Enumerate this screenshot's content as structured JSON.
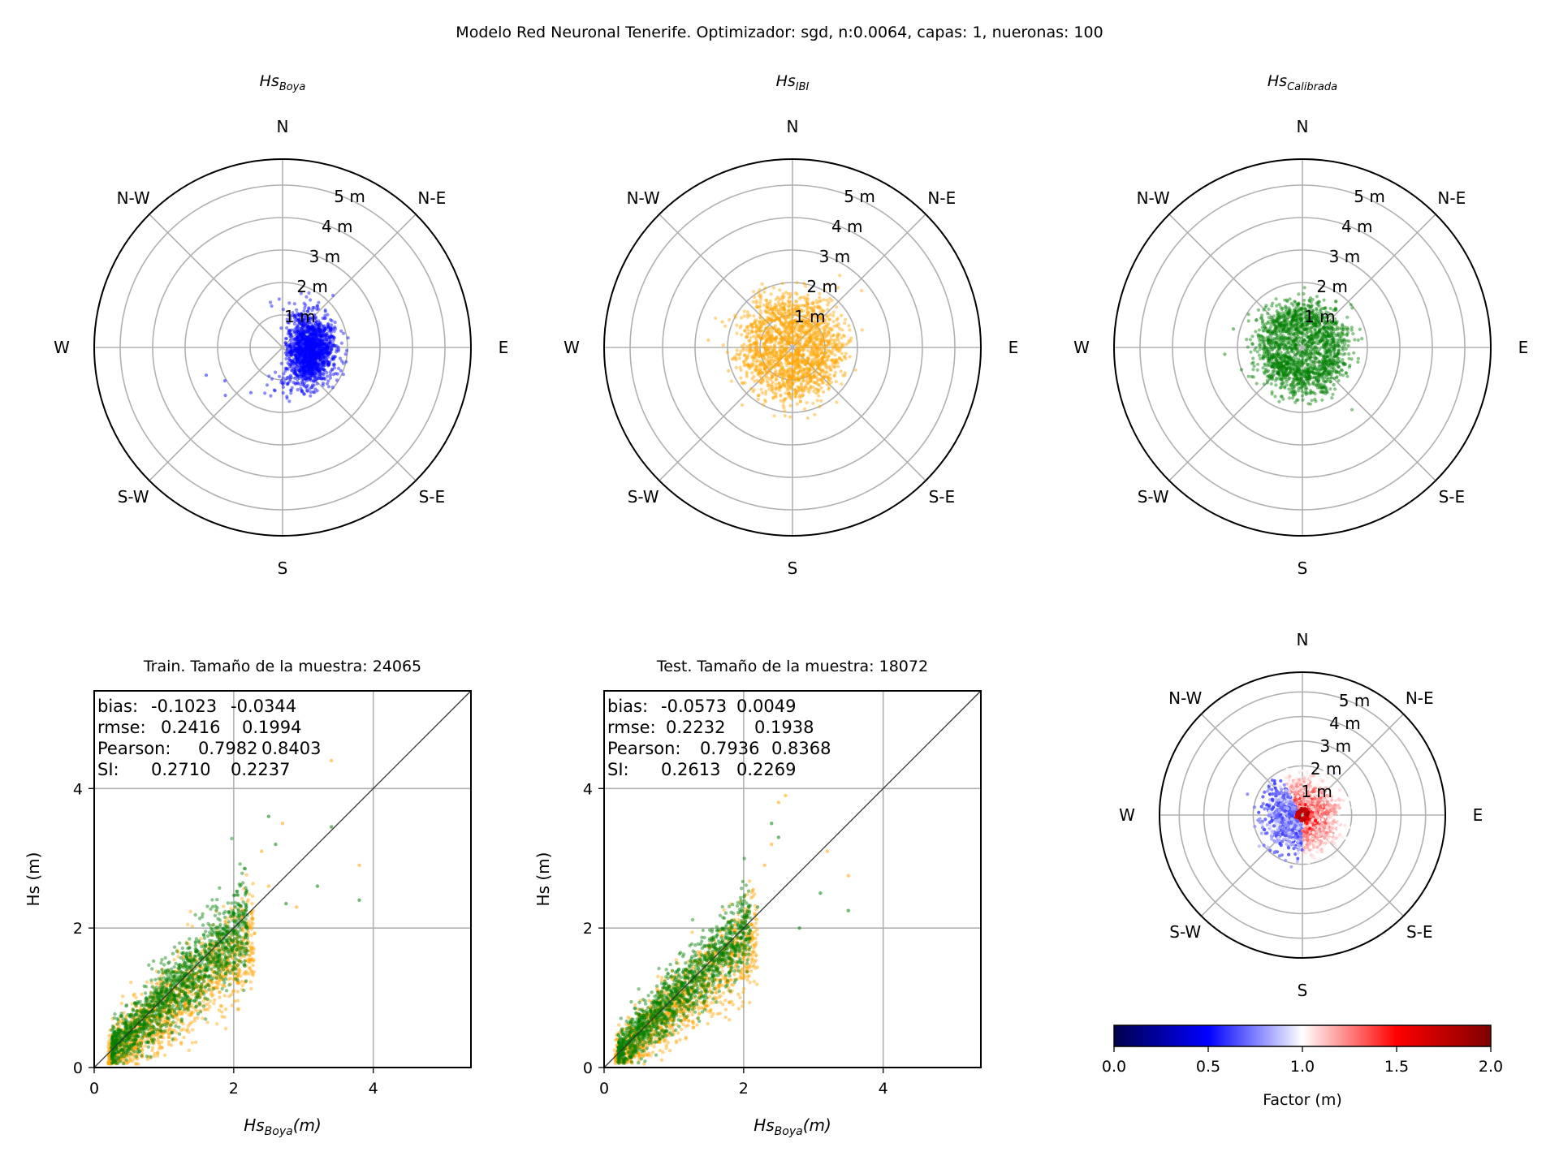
{
  "figure": {
    "suptitle": "Modelo Red Neuronal Tenerife. Optimizador: sgd, n:0.0064, capas: 1, nueronas: 100"
  },
  "colors": {
    "boya": "#0000ff",
    "ibi": "#ffa500",
    "calibrada": "#008000",
    "grid": "#b0b0b0",
    "identity_line": "#333333",
    "colormap": [
      "#00004c",
      "#0000ff",
      "#ffffff",
      "#ff0000",
      "#800000"
    ]
  },
  "chart_data": [
    {
      "type": "scatter",
      "projection": "polar",
      "title": "Hs_Boya",
      "title_base": "Hs",
      "title_sub": "Boya",
      "direction_labels": [
        "N",
        "N-E",
        "E",
        "S-E",
        "S",
        "S-W",
        "W",
        "N-W"
      ],
      "radial_ticks": [
        "1 m",
        "2 m",
        "3 m",
        "4 m",
        "5 m"
      ],
      "rlim": [
        0,
        5.8
      ],
      "grid": true,
      "color": "#0000ff",
      "cluster": {
        "center_dir_deg": 95,
        "center_r": 1.0,
        "spread_dir_deg": 55,
        "spread_r": 0.35,
        "n": 1600
      },
      "outliers": [
        [
          230,
          2.3
        ],
        [
          240,
          2.05
        ],
        [
          215,
          1.7
        ],
        [
          190,
          1.35
        ],
        [
          250,
          2.5
        ],
        [
          120,
          1.7
        ]
      ]
    },
    {
      "type": "scatter",
      "projection": "polar",
      "title": "Hs_IBI",
      "title_base": "Hs",
      "title_sub": "IBI",
      "direction_labels": [
        "N",
        "N-E",
        "E",
        "S-E",
        "S",
        "S-W",
        "W",
        "N-W"
      ],
      "radial_ticks": [
        "1 m",
        "2 m",
        "3 m",
        "4 m",
        "5 m"
      ],
      "rlim": [
        0,
        5.8
      ],
      "grid": true,
      "color": "#ffa500",
      "cluster": {
        "center_dir_deg": 0,
        "center_r": 1.05,
        "spread_dir_deg": 180,
        "spread_r": 0.45,
        "n": 1700
      },
      "outliers": [
        [
          275,
          2.6
        ],
        [
          250,
          2.1
        ],
        [
          235,
          1.9
        ],
        [
          290,
          2.3
        ],
        [
          135,
          1.6
        ],
        [
          215,
          1.8
        ]
      ]
    },
    {
      "type": "scatter",
      "projection": "polar",
      "title": "Hs_Calibrada",
      "title_base": "Hs",
      "title_sub": "Calibrada",
      "direction_labels": [
        "N",
        "N-E",
        "E",
        "S-E",
        "S",
        "S-W",
        "W",
        "N-W"
      ],
      "radial_ticks": [
        "1 m",
        "2 m",
        "3 m",
        "4 m",
        "5 m"
      ],
      "rlim": [
        0,
        5.8
      ],
      "grid": true,
      "color": "#008000",
      "cluster": {
        "center_dir_deg": 0,
        "center_r": 0.95,
        "spread_dir_deg": 180,
        "spread_r": 0.35,
        "n": 1700
      },
      "outliers": [
        [
          265,
          2.4
        ],
        [
          250,
          2.0
        ],
        [
          240,
          1.8
        ],
        [
          285,
          2.2
        ],
        [
          140,
          1.5
        ]
      ]
    },
    {
      "type": "scatter",
      "title": "Train. Tamaño de la muestra: 24065",
      "xlabel_base": "Hs",
      "xlabel_sub": "Boya",
      "xlabel_unit": "(m)",
      "ylabel": "Hs (m)",
      "xlim": [
        0,
        5.4
      ],
      "ylim": [
        0,
        5.4
      ],
      "xticks": [
        0,
        2,
        4
      ],
      "yticks": [
        0,
        2,
        4
      ],
      "grid": true,
      "identity_line": true,
      "stats": [
        {
          "label": "bias:",
          "ibi": "-0.1023",
          "calibrada": "-0.0344"
        },
        {
          "label": "rmse:",
          "ibi": "0.2416",
          "calibrada": "0.1994"
        },
        {
          "label": "Pearson:",
          "ibi": "0.7982",
          "calibrada": "0.8403"
        },
        {
          "label": "SI:",
          "ibi": "0.2710",
          "calibrada": "0.2237"
        }
      ],
      "series": [
        {
          "name": "ibi",
          "color": "#ffa500",
          "x_range": [
            0.2,
            2.3
          ],
          "slope": 0.8,
          "offset": 0.0,
          "noise": 0.33,
          "n": 1300
        },
        {
          "name": "calibrada",
          "color": "#008000",
          "x_range": [
            0.25,
            2.2
          ],
          "slope": 0.95,
          "offset": 0.02,
          "noise": 0.28,
          "n": 1400
        }
      ],
      "outliers": [
        {
          "s": "ibi",
          "x": 3.4,
          "y": 4.4
        },
        {
          "s": "ibi",
          "x": 2.7,
          "y": 3.5
        },
        {
          "s": "ibi",
          "x": 2.4,
          "y": 3.1
        },
        {
          "s": "ibi",
          "x": 3.8,
          "y": 2.9
        },
        {
          "s": "ibi",
          "x": 2.9,
          "y": 2.3
        },
        {
          "s": "ibi",
          "x": 2.5,
          "y": 2.6
        },
        {
          "s": "calibrada",
          "x": 2.5,
          "y": 3.6
        },
        {
          "s": "calibrada",
          "x": 3.4,
          "y": 3.45
        },
        {
          "s": "calibrada",
          "x": 2.6,
          "y": 3.2
        },
        {
          "s": "calibrada",
          "x": 3.2,
          "y": 2.6
        },
        {
          "s": "calibrada",
          "x": 3.8,
          "y": 2.4
        },
        {
          "s": "calibrada",
          "x": 2.75,
          "y": 2.35
        }
      ]
    },
    {
      "type": "scatter",
      "title": "Test. Tamaño de la muestra: 18072",
      "xlabel_base": "Hs",
      "xlabel_sub": "Boya",
      "xlabel_unit": "(m)",
      "ylabel": "Hs (m)",
      "xlim": [
        0,
        5.4
      ],
      "ylim": [
        0,
        5.4
      ],
      "xticks": [
        0,
        2,
        4
      ],
      "yticks": [
        0,
        2,
        4
      ],
      "grid": true,
      "identity_line": true,
      "stats": [
        {
          "label": "bias:",
          "ibi": "-0.0573",
          "calibrada": "0.0049"
        },
        {
          "label": "rmse:",
          "ibi": "0.2232",
          "calibrada": "0.1938"
        },
        {
          "label": "Pearson:",
          "ibi": "0.7936",
          "calibrada": "0.8368"
        },
        {
          "label": "SI:",
          "ibi": "0.2613",
          "calibrada": "0.2269"
        }
      ],
      "series": [
        {
          "name": "ibi",
          "color": "#ffa500",
          "x_range": [
            0.15,
            2.2
          ],
          "slope": 0.85,
          "offset": 0.0,
          "noise": 0.3,
          "n": 1200
        },
        {
          "name": "calibrada",
          "color": "#008000",
          "x_range": [
            0.2,
            2.1
          ],
          "slope": 0.98,
          "offset": 0.02,
          "noise": 0.26,
          "n": 1300
        }
      ],
      "outliers": [
        {
          "s": "ibi",
          "x": 2.6,
          "y": 3.9
        },
        {
          "s": "ibi",
          "x": 2.5,
          "y": 3.8
        },
        {
          "s": "ibi",
          "x": 3.2,
          "y": 3.1
        },
        {
          "s": "ibi",
          "x": 3.5,
          "y": 2.75
        },
        {
          "s": "ibi",
          "x": 2.4,
          "y": 3.2
        },
        {
          "s": "ibi",
          "x": 2.3,
          "y": 2.9
        },
        {
          "s": "calibrada",
          "x": 2.4,
          "y": 3.5
        },
        {
          "s": "calibrada",
          "x": 2.5,
          "y": 3.3
        },
        {
          "s": "calibrada",
          "x": 3.1,
          "y": 2.5
        },
        {
          "s": "calibrada",
          "x": 3.5,
          "y": 2.25
        },
        {
          "s": "calibrada",
          "x": 2.8,
          "y": 2.0
        },
        {
          "s": "calibrada",
          "x": 2.2,
          "y": 2.3
        }
      ]
    },
    {
      "type": "scatter",
      "projection": "polar",
      "title": "",
      "direction_labels": [
        "N",
        "N-E",
        "E",
        "S-E",
        "S",
        "S-W",
        "W",
        "N-W"
      ],
      "radial_ticks": [
        "1 m",
        "2 m",
        "3 m",
        "4 m",
        "5 m"
      ],
      "rlim": [
        0,
        5.8
      ],
      "grid": true,
      "color_by": "factor",
      "cluster": {
        "center_dir_deg": 0,
        "center_r": 0.9,
        "spread_dir_deg": 180,
        "spread_r": 0.45,
        "n": 1500
      },
      "colorbar": {
        "label": "Factor (m)",
        "ticks": [
          "0.0",
          "0.5",
          "1.0",
          "1.5",
          "2.0"
        ],
        "vmin": 0.0,
        "vmax": 2.0
      }
    }
  ]
}
